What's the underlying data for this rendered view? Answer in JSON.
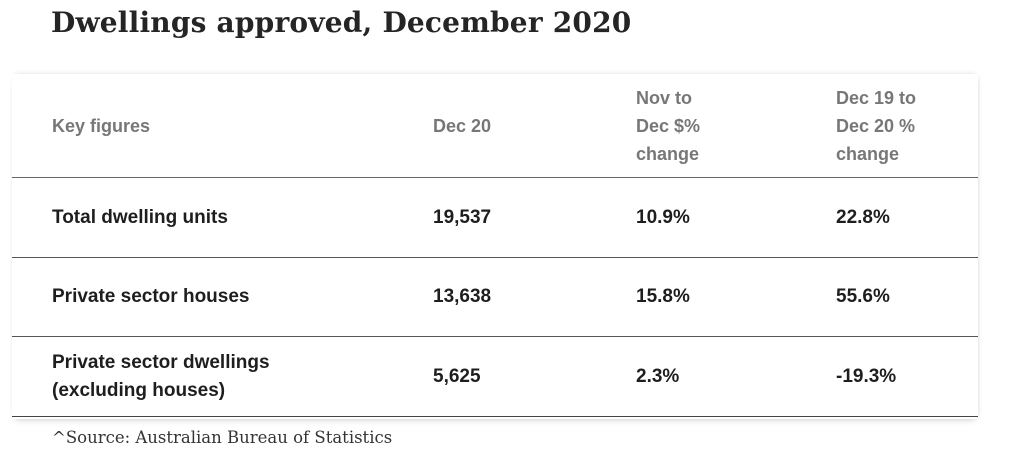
{
  "title": "Dwellings approved, December 2020",
  "chart_data": {
    "type": "table",
    "title": "Dwellings approved, December 2020",
    "columns": [
      "Key figures",
      "Dec 20",
      "Nov to\nDec $%\nchange",
      "Dec 19 to\nDec 20 %\nchange"
    ],
    "rows": [
      {
        "label": "Total dwelling units",
        "values": [
          "19,537",
          "10.9%",
          "22.8%"
        ]
      },
      {
        "label": "Private sector houses",
        "values": [
          "13,638",
          "15.8%",
          "55.6%"
        ]
      },
      {
        "label": "Private sector dwellings\n(excluding houses)",
        "values": [
          "5,625",
          "2.3%",
          "-19.3%"
        ]
      }
    ]
  },
  "source": "^Source: Australian Bureau of Statistics"
}
